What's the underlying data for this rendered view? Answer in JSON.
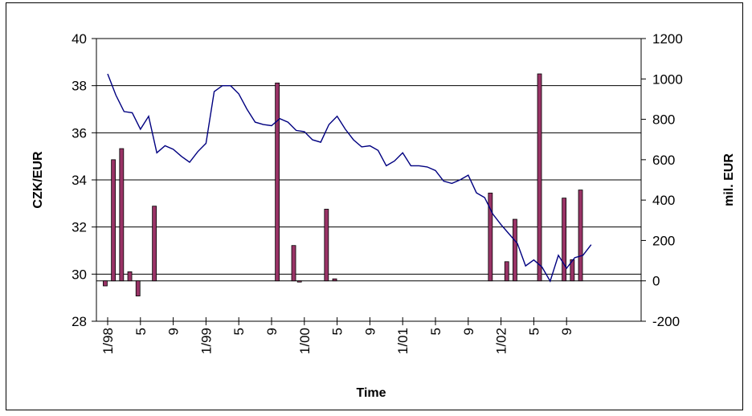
{
  "chart_data": {
    "type": "bar+line",
    "xlabel": "Time",
    "ylabel_left": "CZK/EUR",
    "ylabel_right": "mil. EUR",
    "ylim_left": [
      28,
      40
    ],
    "yticks_left": [
      28,
      30,
      32,
      34,
      36,
      38,
      40
    ],
    "ylim_right": [
      -200,
      1200
    ],
    "yticks_right": [
      -200,
      0,
      200,
      400,
      600,
      800,
      1000,
      1200
    ],
    "x_tick_labels": [
      "1/98",
      "5",
      "9",
      "1/99",
      "5",
      "9",
      "1/00",
      "5",
      "9",
      "1/01",
      "5",
      "9",
      "1/02",
      "5",
      "9"
    ],
    "x_tick_months": [
      0,
      4,
      8,
      12,
      16,
      20,
      24,
      28,
      32,
      36,
      40,
      44,
      48,
      52,
      56
    ],
    "grid": "horizontal",
    "series": [
      {
        "type": "bar",
        "axis": "right",
        "color": "#993366",
        "points": [
          {
            "month": -0.3,
            "value": -25
          },
          {
            "month": 0.7,
            "value": 600
          },
          {
            "month": 1.7,
            "value": 655
          },
          {
            "month": 2.7,
            "value": 45
          },
          {
            "month": 3.7,
            "value": -75
          },
          {
            "month": 5.7,
            "value": 370
          },
          {
            "month": 20.7,
            "value": 980
          },
          {
            "month": 22.7,
            "value": 175
          },
          {
            "month": 23.4,
            "value": -5
          },
          {
            "month": 26.7,
            "value": 355
          },
          {
            "month": 27.7,
            "value": 10
          },
          {
            "month": 46.7,
            "value": 435
          },
          {
            "month": 48.7,
            "value": 95
          },
          {
            "month": 49.7,
            "value": 305
          },
          {
            "month": 52.7,
            "value": 1025
          },
          {
            "month": 55.7,
            "value": 410
          },
          {
            "month": 56.7,
            "value": 105
          },
          {
            "month": 57.7,
            "value": 450
          }
        ]
      },
      {
        "type": "line",
        "axis": "left",
        "color": "#000080",
        "points": [
          [
            0,
            38.5
          ],
          [
            1,
            37.6
          ],
          [
            2,
            36.9
          ],
          [
            3,
            36.85
          ],
          [
            4,
            36.15
          ],
          [
            5,
            36.7
          ],
          [
            6,
            35.15
          ],
          [
            7,
            35.45
          ],
          [
            8,
            35.3
          ],
          [
            9,
            35.0
          ],
          [
            10,
            34.75
          ],
          [
            11,
            35.2
          ],
          [
            12,
            35.55
          ],
          [
            13,
            37.75
          ],
          [
            14,
            38.0
          ],
          [
            15,
            38.0
          ],
          [
            16,
            37.65
          ],
          [
            17,
            37.0
          ],
          [
            18,
            36.45
          ],
          [
            19,
            36.35
          ],
          [
            20,
            36.3
          ],
          [
            21,
            36.6
          ],
          [
            22,
            36.45
          ],
          [
            23,
            36.1
          ],
          [
            24,
            36.05
          ],
          [
            25,
            35.7
          ],
          [
            26,
            35.6
          ],
          [
            27,
            36.35
          ],
          [
            28,
            36.7
          ],
          [
            29,
            36.15
          ],
          [
            30,
            35.7
          ],
          [
            31,
            35.4
          ],
          [
            32,
            35.45
          ],
          [
            33,
            35.25
          ],
          [
            34,
            34.6
          ],
          [
            35,
            34.8
          ],
          [
            36,
            35.15
          ],
          [
            37,
            34.6
          ],
          [
            38,
            34.6
          ],
          [
            39,
            34.55
          ],
          [
            40,
            34.4
          ],
          [
            41,
            33.95
          ],
          [
            42,
            33.85
          ],
          [
            43,
            34.0
          ],
          [
            44,
            34.2
          ],
          [
            45,
            33.45
          ],
          [
            46,
            33.25
          ],
          [
            47,
            32.55
          ],
          [
            48,
            32.1
          ],
          [
            49,
            31.7
          ],
          [
            50,
            31.3
          ],
          [
            51,
            30.35
          ],
          [
            52,
            30.6
          ],
          [
            53,
            30.3
          ],
          [
            54,
            29.7
          ],
          [
            55,
            30.8
          ],
          [
            56,
            30.25
          ],
          [
            57,
            30.7
          ],
          [
            58,
            30.8
          ],
          [
            59,
            31.25
          ]
        ]
      }
    ]
  }
}
